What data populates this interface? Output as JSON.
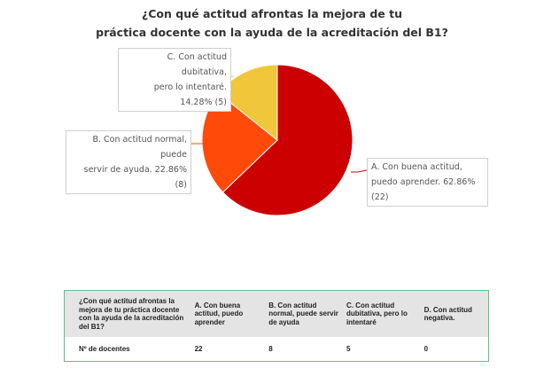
{
  "title_line1": "¿Con qué actitud afrontas la mejora de tu",
  "title_line2": "práctica docente con la ayuda de la acreditación del B1?",
  "chart_data": {
    "type": "pie",
    "categories": [
      "A. Con buena actitud, puedo aprender.",
      "B. Con actitud normal, puede servir de ayuda.",
      "C. Con actitud dubitativa, pero lo intentaré."
    ],
    "values": [
      62.86,
      22.86,
      14.28
    ],
    "counts": [
      22,
      8,
      5
    ],
    "colors": [
      "#cc0000",
      "#ff4a0a",
      "#f0c63a"
    ]
  },
  "callouts": {
    "a_line1": "A. Con buena actitud,",
    "a_line2": "puedo aprender.  62.86% (22)",
    "b_line1": "B. Con actitud normal, puede",
    "b_line2": "servir de ayuda.  22.86% (8)",
    "c_line1": "C. Con actitud dubitativa,",
    "c_line2": "pero lo intentaré.  14.28% (5)"
  },
  "table": {
    "headers": [
      "¿Con qué actitud afrontas la mejora de tu práctica docente con la ayuda de la acreditación del B1?",
      "A. Con buena actitud, puedo aprender",
      "B. Con actitud normal, puede servir de ayuda",
      "C. Con actitud dubitativa, pero lo intentaré",
      "D. Con actitud negativa."
    ],
    "row": [
      "Nº de docentes",
      "22",
      "8",
      "5",
      "0"
    ]
  }
}
